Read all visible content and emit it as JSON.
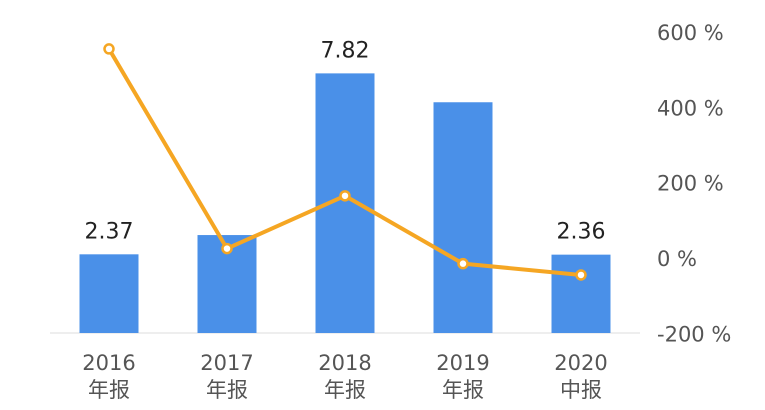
{
  "chart_data": {
    "type": "bar",
    "categories": [
      [
        "2016",
        "年报"
      ],
      [
        "2017",
        "年报"
      ],
      [
        "2018",
        "年报"
      ],
      [
        "2019",
        "年报"
      ],
      [
        "2020",
        "中报"
      ]
    ],
    "series": [
      {
        "kind": "bar",
        "axis": "left",
        "values": [
          2.37,
          2.95,
          7.82,
          6.95,
          2.36
        ],
        "labels": [
          "2.37",
          "",
          "7.82",
          "",
          "2.36"
        ],
        "color": "#4A90E8"
      },
      {
        "kind": "line",
        "axis": "right",
        "values": [
          555,
          25,
          165,
          -15,
          -45
        ],
        "color": "#F5A623"
      }
    ],
    "left_axis": {
      "range": [
        0,
        9.5
      ],
      "visible": false
    },
    "right_axis": {
      "range": [
        -200,
        600
      ],
      "ticks": [
        600,
        400,
        200,
        0,
        -200
      ],
      "tick_labels": [
        "600 %",
        "400 %",
        "200 %",
        "0 %",
        "-200 %"
      ]
    },
    "title": "",
    "xlabel": "",
    "ylabel": "",
    "grid": false,
    "legend": "none"
  }
}
